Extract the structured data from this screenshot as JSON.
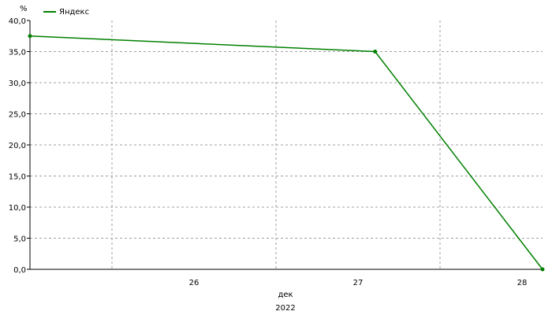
{
  "chart_data": {
    "type": "line",
    "ylabel": "%",
    "xlabel": "дек",
    "xlabel2": "2022",
    "ylim": [
      0,
      40
    ],
    "y_ticks": [
      "0,0",
      "5,0",
      "10,0",
      "15,0",
      "20,0",
      "25,0",
      "30,0",
      "35,0",
      "40,0"
    ],
    "x_ticks": [
      "26",
      "27",
      "28"
    ],
    "grid": true,
    "legend_position": "top-left",
    "series": [
      {
        "name": "Яндекс",
        "color": "#008000",
        "points": [
          {
            "x": "2022-12-25T12:00",
            "y": 37.5
          },
          {
            "x": "2022-12-27T14:30",
            "y": 35.0
          },
          {
            "x": "2022-12-28T15:00",
            "y": 0.0
          }
        ]
      }
    ]
  }
}
